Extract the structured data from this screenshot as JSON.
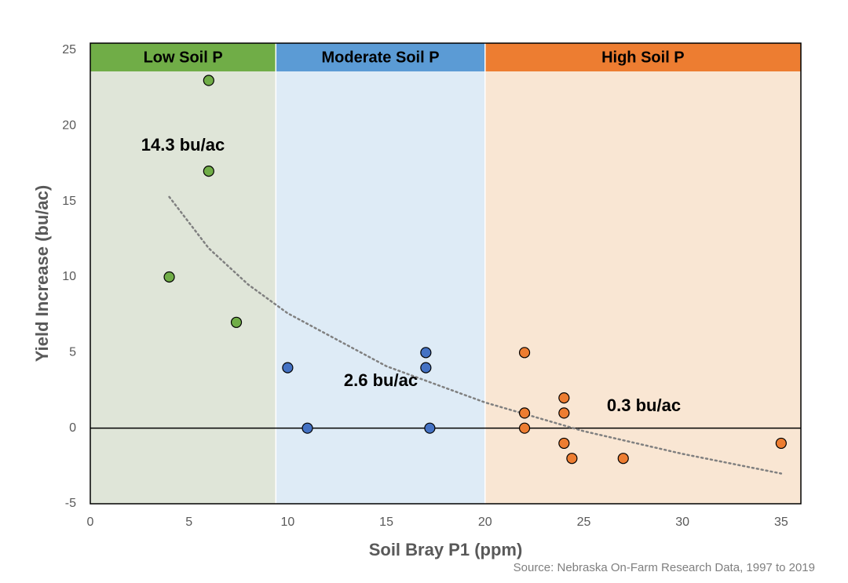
{
  "chart_data": {
    "type": "scatter",
    "x_label": "Soil Bray P1 (ppm)",
    "y_label": "Yield Increase (bu/ac)",
    "source": "Source: Nebraska On-Farm Research Data, 1997 to 2019",
    "xlim": [
      0,
      36
    ],
    "ylim": [
      -5,
      25
    ],
    "xticks": [
      0,
      5,
      10,
      15,
      20,
      25,
      30,
      35
    ],
    "yticks": [
      -5,
      0,
      5,
      10,
      15,
      20,
      25
    ],
    "zones": [
      {
        "name": "Low Soil P",
        "start": 0,
        "end": 9.4,
        "color": "#70ad47",
        "fill": "#dfe5d8"
      },
      {
        "name": "Moderate Soil P",
        "start": 9.4,
        "end": 20,
        "color": "#5b9bd5",
        "fill": "#deebf6"
      },
      {
        "name": "High Soil P",
        "start": 20,
        "end": 36,
        "color": "#ed7d31",
        "fill": "#f9e6d3"
      }
    ],
    "annotations": [
      "14.3 bu/ac",
      "2.6 bu/ac",
      "0.3 bu/ac"
    ],
    "series": [
      {
        "color": "#70ad47",
        "x": [
          6,
          6,
          4,
          7.4
        ],
        "values": [
          23,
          17,
          10,
          7
        ]
      },
      {
        "color": "#4472c4",
        "x": [
          10,
          11,
          17,
          17,
          17.2
        ],
        "values": [
          4,
          0,
          5,
          4,
          0
        ]
      },
      {
        "color": "#ed7d31",
        "x": [
          22,
          22,
          22,
          24,
          24,
          24,
          24.4,
          27,
          35
        ],
        "values": [
          5,
          1,
          0,
          2,
          1,
          -1,
          -2,
          -2,
          -1
        ]
      }
    ],
    "trendline": {
      "color": "#808080",
      "x": [
        4,
        6,
        8,
        10,
        15,
        20,
        25,
        30,
        35
      ],
      "values": [
        15.3,
        11.9,
        9.5,
        7.6,
        4.1,
        1.7,
        -0.2,
        -1.7,
        -3
      ]
    }
  }
}
